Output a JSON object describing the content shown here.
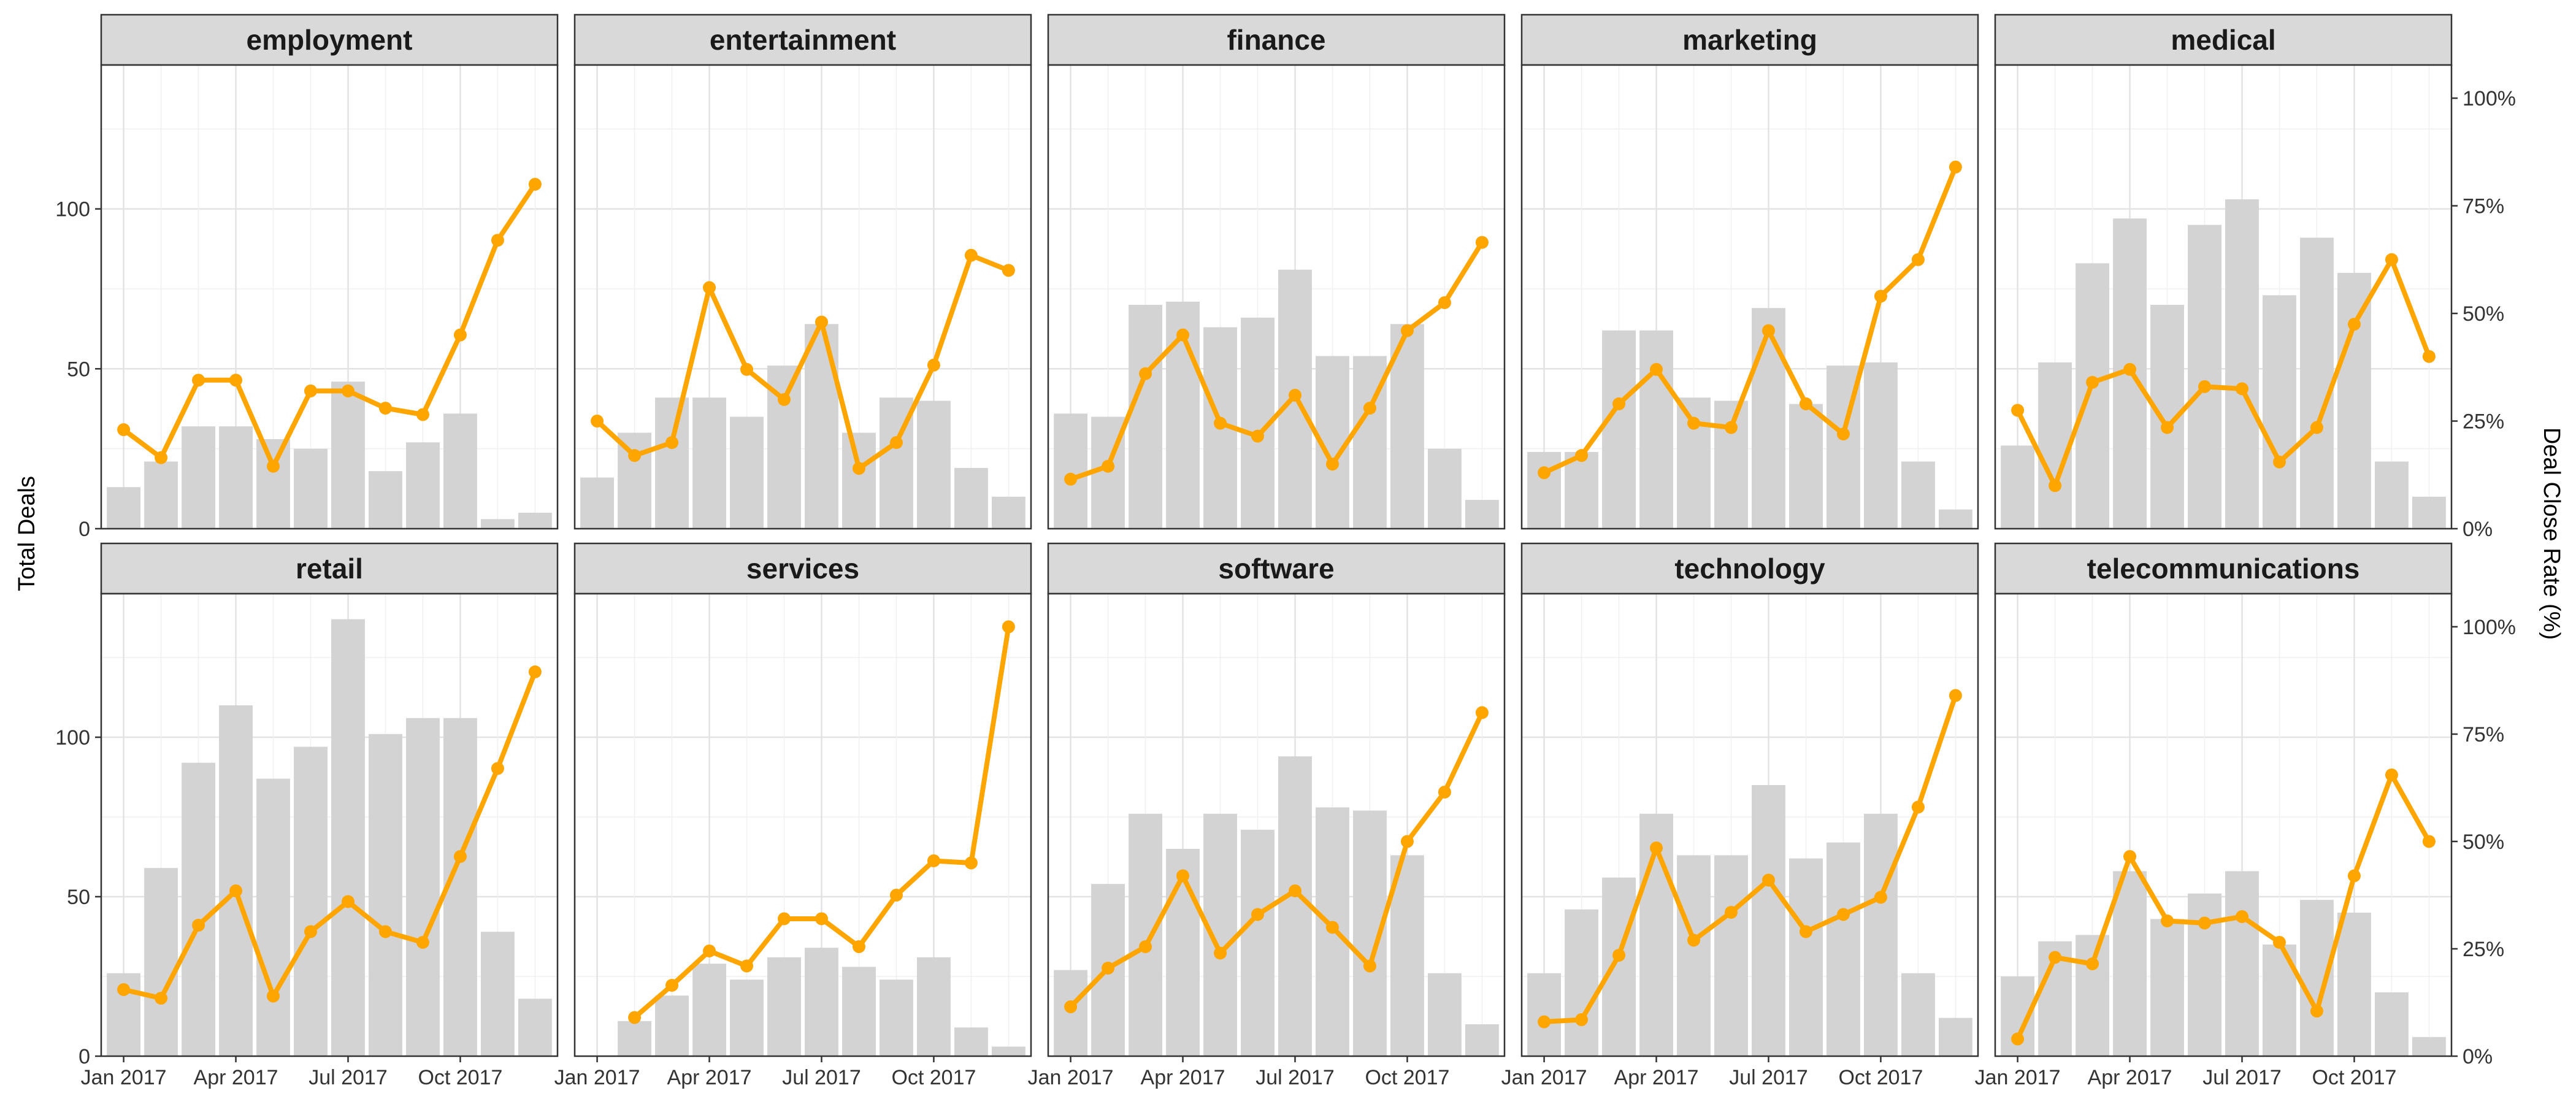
{
  "chart_data": {
    "type": "bar+line",
    "layout": "facet-grid 2x5",
    "y_left_label": "Total Deals",
    "y_right_label": "Deal Close Rate (%)",
    "y_left_ticks": [
      0,
      50,
      100
    ],
    "y_left_range": [
      0,
      145
    ],
    "y_right_ticks": [
      "0%",
      "25%",
      "50%",
      "75%",
      "100%"
    ],
    "y_right_range": [
      0,
      1.077
    ],
    "x_tick_labels": [
      "Jan 2017",
      "Apr 2017",
      "Jul 2017",
      "Oct 2017"
    ],
    "x_tick_month_index": [
      0,
      3,
      6,
      9
    ],
    "months": [
      "2017-01",
      "2017-02",
      "2017-03",
      "2017-04",
      "2017-05",
      "2017-06",
      "2017-07",
      "2017-08",
      "2017-09",
      "2017-10",
      "2017-11",
      "2017-12"
    ],
    "bar_color": "#d3d3d3",
    "line_color": "#ffa500",
    "grid": true,
    "panels": [
      {
        "title": "employment",
        "bars": [
          13,
          21,
          32,
          32,
          28,
          25,
          46,
          18,
          27,
          36,
          3,
          5
        ],
        "rate": [
          0.23,
          0.165,
          0.345,
          0.345,
          0.145,
          0.32,
          0.32,
          0.28,
          0.265,
          0.45,
          0.67,
          0.8
        ]
      },
      {
        "title": "entertainment",
        "bars": [
          16,
          30,
          41,
          41,
          35,
          51,
          64,
          30,
          41,
          40,
          19,
          10
        ],
        "rate": [
          0.25,
          0.17,
          0.2,
          0.56,
          0.37,
          0.3,
          0.48,
          0.14,
          0.2,
          0.38,
          0.635,
          0.6
        ]
      },
      {
        "title": "finance",
        "bars": [
          36,
          35,
          70,
          71,
          63,
          66,
          81,
          54,
          54,
          64,
          25,
          9
        ],
        "rate": [
          0.115,
          0.145,
          0.36,
          0.45,
          0.245,
          0.215,
          0.31,
          0.15,
          0.28,
          0.46,
          0.525,
          0.665
        ]
      },
      {
        "title": "marketing",
        "bars": [
          24,
          24,
          62,
          62,
          41,
          40,
          69,
          39,
          51,
          52,
          21,
          6
        ],
        "rate": [
          0.13,
          0.17,
          0.29,
          0.37,
          0.245,
          0.235,
          0.46,
          0.29,
          0.22,
          0.54,
          0.625,
          0.84
        ]
      },
      {
        "title": "medical",
        "bars": [
          26,
          52,
          83,
          97,
          70,
          95,
          103,
          73,
          91,
          80,
          21,
          10
        ],
        "rate": [
          0.275,
          0.1,
          0.34,
          0.37,
          0.235,
          0.33,
          0.325,
          0.155,
          0.235,
          0.475,
          0.625,
          0.4
        ]
      },
      {
        "title": "retail",
        "bars": [
          26,
          59,
          92,
          110,
          87,
          97,
          137,
          101,
          106,
          106,
          39,
          18
        ],
        "rate": [
          0.155,
          0.135,
          0.305,
          0.385,
          0.14,
          0.29,
          0.36,
          0.29,
          0.265,
          0.465,
          0.67,
          0.895
        ]
      },
      {
        "title": "services",
        "bars": [
          0,
          11,
          19,
          29,
          24,
          31,
          34,
          28,
          24,
          31,
          9,
          3
        ],
        "rate": [
          null,
          0.09,
          0.165,
          0.245,
          0.21,
          0.32,
          0.32,
          0.255,
          0.375,
          0.455,
          0.45,
          1.0
        ]
      },
      {
        "title": "software",
        "bars": [
          27,
          54,
          76,
          65,
          76,
          71,
          94,
          78,
          77,
          63,
          26,
          10
        ],
        "rate": [
          0.115,
          0.205,
          0.255,
          0.42,
          0.24,
          0.33,
          0.385,
          0.3,
          0.21,
          0.5,
          0.615,
          0.8
        ]
      },
      {
        "title": "technology",
        "bars": [
          26,
          46,
          56,
          76,
          63,
          63,
          85,
          62,
          67,
          76,
          26,
          12
        ],
        "rate": [
          0.08,
          0.085,
          0.235,
          0.485,
          0.27,
          0.335,
          0.41,
          0.29,
          0.33,
          0.37,
          0.58,
          0.84
        ]
      },
      {
        "title": "telecommunications",
        "bars": [
          25,
          36,
          38,
          58,
          43,
          51,
          58,
          35,
          49,
          45,
          20,
          6
        ],
        "rate": [
          0.04,
          0.23,
          0.215,
          0.465,
          0.315,
          0.31,
          0.325,
          0.265,
          0.105,
          0.42,
          0.655,
          0.5
        ]
      }
    ]
  }
}
